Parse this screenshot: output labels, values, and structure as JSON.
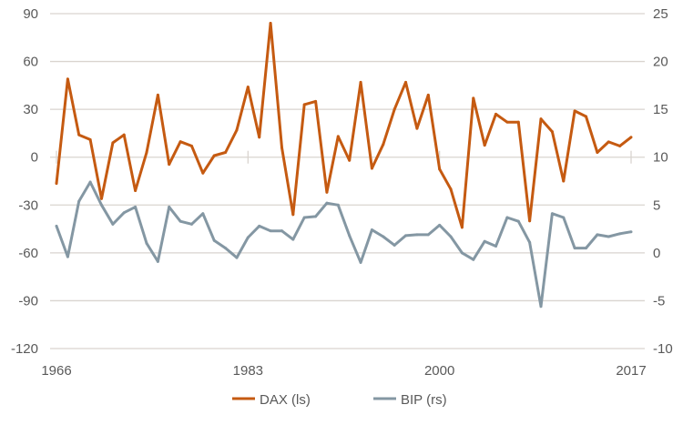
{
  "chart_data": {
    "type": "line",
    "title": "",
    "x": [
      1966,
      1967,
      1968,
      1969,
      1970,
      1971,
      1972,
      1973,
      1974,
      1975,
      1976,
      1977,
      1978,
      1979,
      1980,
      1981,
      1982,
      1983,
      1984,
      1985,
      1986,
      1987,
      1988,
      1989,
      1990,
      1991,
      1992,
      1993,
      1994,
      1995,
      1996,
      1997,
      1998,
      1999,
      2000,
      2001,
      2002,
      2003,
      2004,
      2005,
      2006,
      2007,
      2008,
      2009,
      2010,
      2011,
      2012,
      2013,
      2014,
      2015,
      2016,
      2017
    ],
    "series": [
      {
        "name": "DAX (ls)",
        "axis": "left",
        "color": "#C55A11",
        "values": [
          -16.5,
          49,
          14,
          11,
          -26,
          9,
          14,
          -21,
          3,
          39,
          -4.5,
          9.7,
          7,
          -10,
          1,
          3,
          17,
          44,
          12.5,
          84,
          6,
          -36,
          33,
          35,
          -22,
          13,
          -2,
          47,
          -7,
          8,
          30,
          47,
          18,
          39,
          -7.5,
          -20,
          -44,
          37,
          7.5,
          27,
          22,
          22,
          -40,
          24,
          16,
          -15,
          29,
          25.5,
          3,
          9.6,
          7,
          12.5
        ]
      },
      {
        "name": "BIP (rs)",
        "axis": "right",
        "color": "#8497A3",
        "values": [
          2.8,
          -0.4,
          5.4,
          7.4,
          5.0,
          3.0,
          4.2,
          4.8,
          1.0,
          -0.9,
          4.8,
          3.3,
          3.0,
          4.1,
          1.3,
          0.5,
          -0.5,
          1.6,
          2.8,
          2.3,
          2.3,
          1.4,
          3.7,
          3.8,
          5.2,
          5.0,
          1.8,
          -1.0,
          2.4,
          1.7,
          0.8,
          1.8,
          1.9,
          1.9,
          2.9,
          1.7,
          0.0,
          -0.7,
          1.2,
          0.7,
          3.7,
          3.3,
          1.1,
          -5.6,
          4.1,
          3.7,
          0.5,
          0.5,
          1.9,
          1.7,
          2.0,
          2.2
        ]
      }
    ],
    "xlabel": "",
    "ylabel": "",
    "xlim": [
      1966,
      2017
    ],
    "x_ticks": [
      "1966",
      "1983",
      "2000",
      "2017"
    ],
    "ylim_left": [
      -120,
      90
    ],
    "y_ticks_left": [
      "90",
      "60",
      "30",
      "0",
      "-30",
      "-60",
      "-90",
      "-120"
    ],
    "ylim_right": [
      -10,
      25
    ],
    "y_ticks_right": [
      "25",
      "20",
      "15",
      "10",
      "5",
      "0",
      "-5",
      "-10"
    ],
    "grid": true,
    "legend_position": "bottom-center"
  }
}
